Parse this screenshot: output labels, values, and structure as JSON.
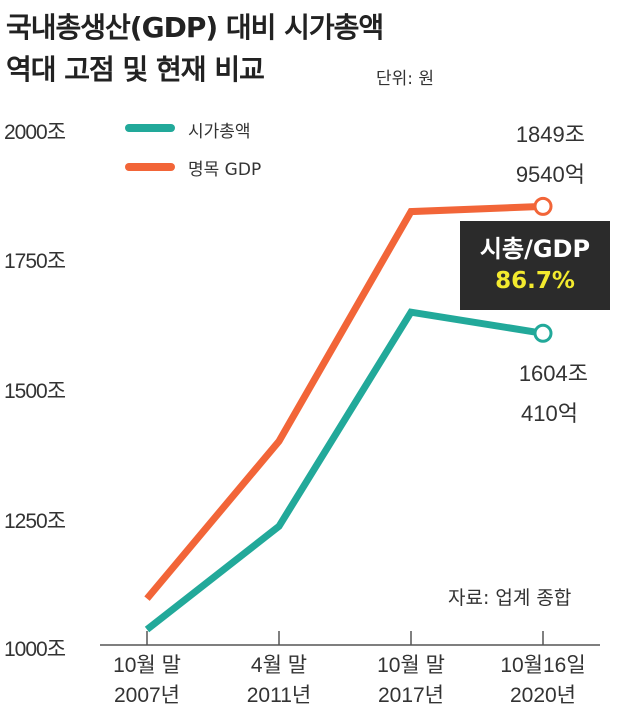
{
  "title_line1": "국내총생산(GDP) 대비 시가총액",
  "title_line2": "역대 고점 및 현재 비교",
  "unit": "단위: 원",
  "source": "자료: 업계 종합",
  "ratio": {
    "label": "시총/GDP",
    "value": "86.7%"
  },
  "annotations": {
    "gdp_last": [
      "1849조",
      "9540억"
    ],
    "mcap_last": [
      "1604조",
      "410억"
    ]
  },
  "colors": {
    "market_cap": "#22a99a",
    "gdp": "#f26538",
    "box": "#2b2b2b",
    "highlight": "#f3ea2e"
  },
  "chart_data": {
    "type": "line",
    "title": "국내총생산(GDP) 대비 시가총액 역대 고점 및 현재 비교",
    "categories": [
      [
        "10월 말",
        "2007년"
      ],
      [
        "4월 말",
        "2011년"
      ],
      [
        "10월 말",
        "2017년"
      ],
      [
        "10월16일",
        "2020년"
      ]
    ],
    "yticks": [
      "1000조",
      "1250조",
      "1500조",
      "1750조",
      "2000조"
    ],
    "ylim": [
      1000,
      2000
    ],
    "series": [
      {
        "name": "시가총액",
        "color": "#22a99a",
        "values": [
          1030,
          1230,
          1645,
          1604.041
        ]
      },
      {
        "name": "명목 GDP",
        "color": "#f26538",
        "values": [
          1090,
          1395,
          1840,
          1849.954
        ]
      }
    ],
    "grid": false,
    "legend": "top-left"
  }
}
